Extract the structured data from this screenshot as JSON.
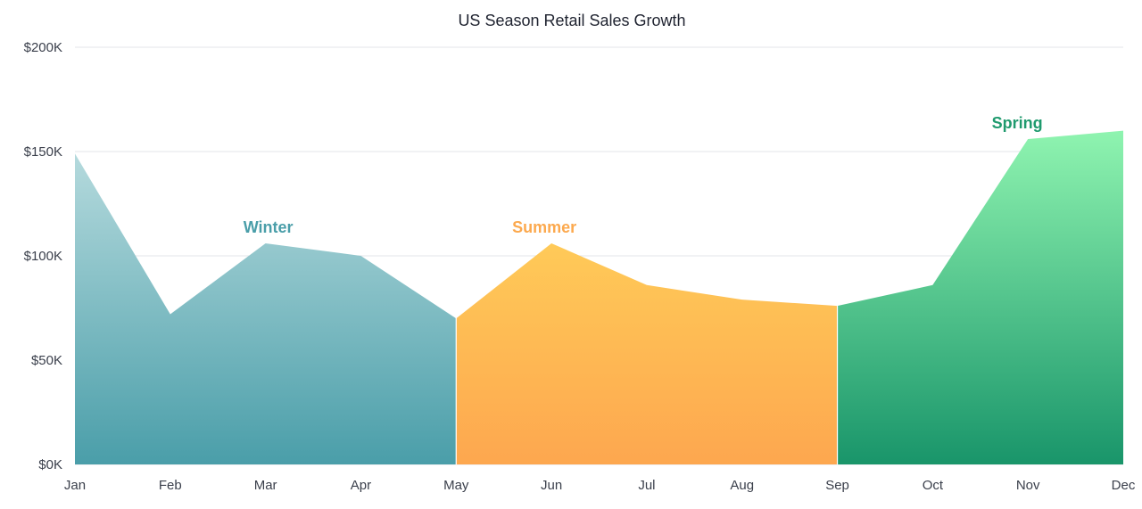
{
  "chart_data": {
    "type": "area",
    "title": "US Season Retail Sales Growth",
    "xlabel": "",
    "ylabel": "",
    "categories": [
      "Jan",
      "Feb",
      "Mar",
      "Apr",
      "May",
      "Jun",
      "Jul",
      "Aug",
      "Sep",
      "Oct",
      "Nov",
      "Dec"
    ],
    "ylim": [
      0,
      200000
    ],
    "yticks": [
      0,
      50000,
      100000,
      150000,
      200000
    ],
    "ytick_labels": [
      "$0K",
      "$50K",
      "$100K",
      "$150K",
      "$200K"
    ],
    "grid": true,
    "series": [
      {
        "name": "Winter",
        "x": [
          "Jan",
          "Feb",
          "Mar",
          "Apr",
          "May"
        ],
        "values": [
          149000,
          72000,
          106000,
          100000,
          70000
        ],
        "color_top": "#b5dadd",
        "color_bottom": "#4a9ea9",
        "label_color": "#4a9ea9",
        "label_anchor": "Mar"
      },
      {
        "name": "Summer",
        "x": [
          "May",
          "Jun",
          "Jul",
          "Aug",
          "Sep"
        ],
        "values": [
          70000,
          106000,
          86000,
          79000,
          76000
        ],
        "color_top": "#ffca58",
        "color_bottom": "#fda74f",
        "label_color": "#fca94e",
        "label_anchor": "Jun"
      },
      {
        "name": "Spring",
        "x": [
          "Sep",
          "Oct",
          "Nov",
          "Dec"
        ],
        "values": [
          76000,
          86000,
          156000,
          160000
        ],
        "color_top": "#8ff4b0",
        "color_bottom": "#19956a",
        "label_color": "#1f9a6e",
        "label_anchor": "Nov"
      }
    ]
  }
}
